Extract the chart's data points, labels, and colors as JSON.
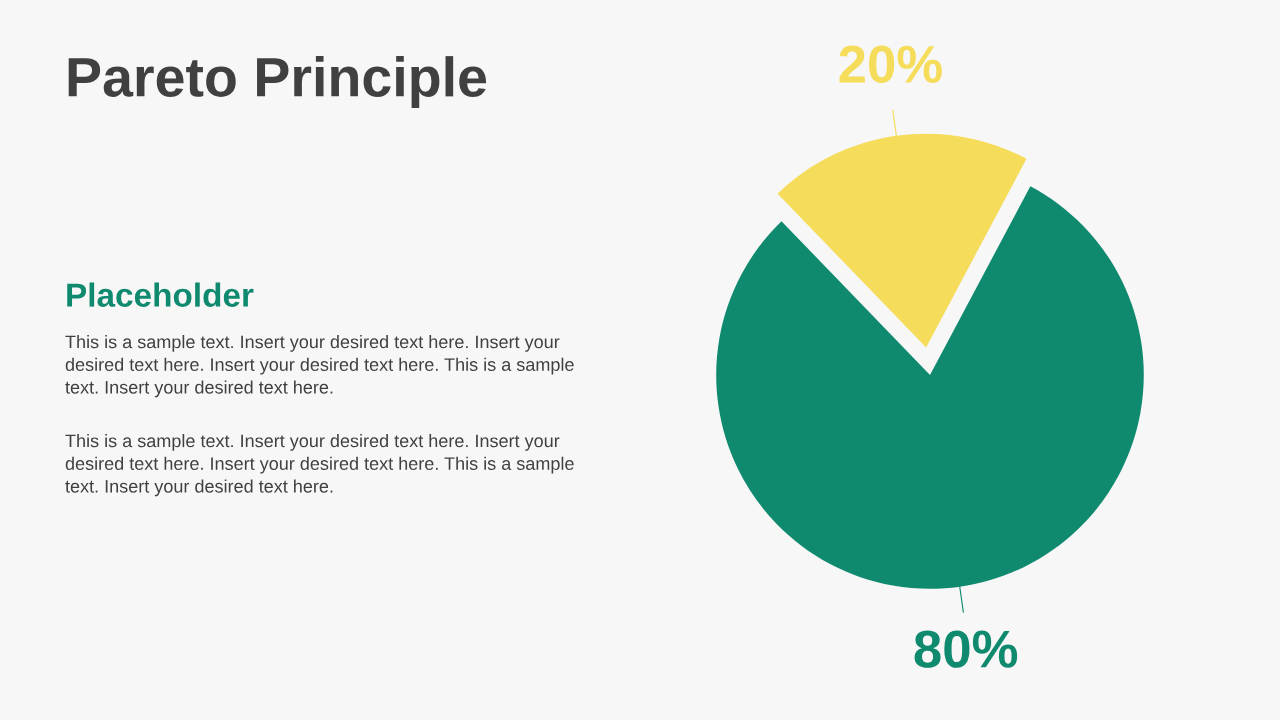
{
  "chart_data": {
    "type": "pie",
    "title": "Pareto Principle",
    "categories": [
      null,
      null
    ],
    "values": [
      20,
      80
    ],
    "colors": [
      "#f5dc5a",
      "#0f8a6f"
    ],
    "value_labels": [
      "20%",
      "80%"
    ],
    "annotations": [
      "Placeholder",
      "This is a sample text. Insert your desired text here. Insert your desired text here. Insert your desired text here. This is a sample text. Insert your desired text here.",
      "This is a sample text. Insert your desired text here. Insert your desired text here. Insert your desired text here. This is a sample text. Insert your desired text here."
    ]
  }
}
